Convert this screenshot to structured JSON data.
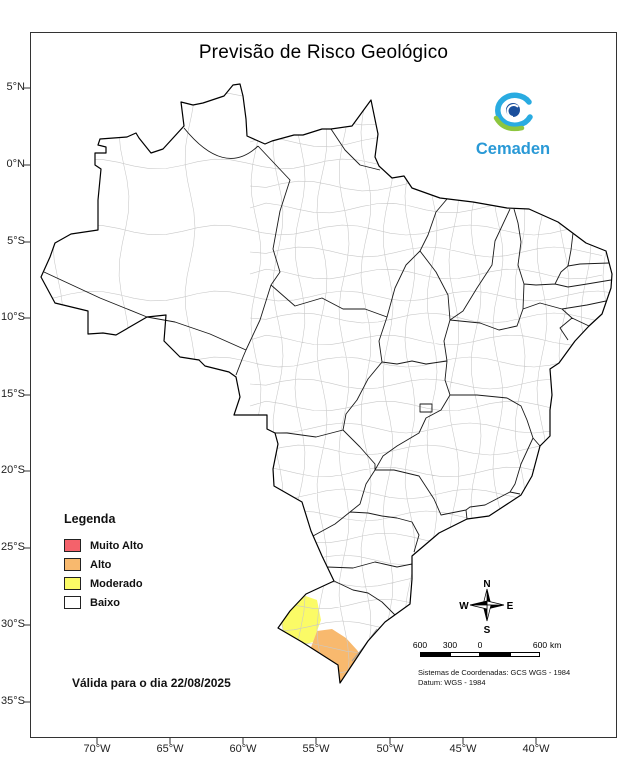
{
  "title": "Previsão de Risco Geológico",
  "logo": {
    "text": "Cemaden"
  },
  "axes": {
    "latitude_labels": [
      "5°N",
      "0°N",
      "5°S",
      "10°S",
      "15°S",
      "20°S",
      "25°S",
      "30°S",
      "35°S"
    ],
    "longitude_labels": [
      "70°W",
      "65°W",
      "60°W",
      "55°W",
      "50°W",
      "45°W",
      "40°W"
    ]
  },
  "legend": {
    "title": "Legenda",
    "items": [
      {
        "label": "Muito Alto",
        "color": "#F4626B"
      },
      {
        "label": "Alto",
        "color": "#F8B96E"
      },
      {
        "label": "Moderado",
        "color": "#FBFB66"
      },
      {
        "label": "Baixo",
        "color": "#FFFFFF"
      }
    ]
  },
  "validity_text": "Válida para o dia 22/08/2025",
  "compass": {
    "north": "N",
    "south": "S",
    "east": "E",
    "west": "W"
  },
  "scale_bar": {
    "labels": [
      "600",
      "300",
      "0",
      "600"
    ],
    "unit": "km"
  },
  "notes": {
    "coordinate_system": "Sistemas de Coordenadas: GCS WGS - 1984",
    "datum": "Datum: WGS - 1984"
  },
  "map": {
    "risk_areas": [
      {
        "level": "Moderado"
      },
      {
        "level": "Alto"
      }
    ]
  }
}
